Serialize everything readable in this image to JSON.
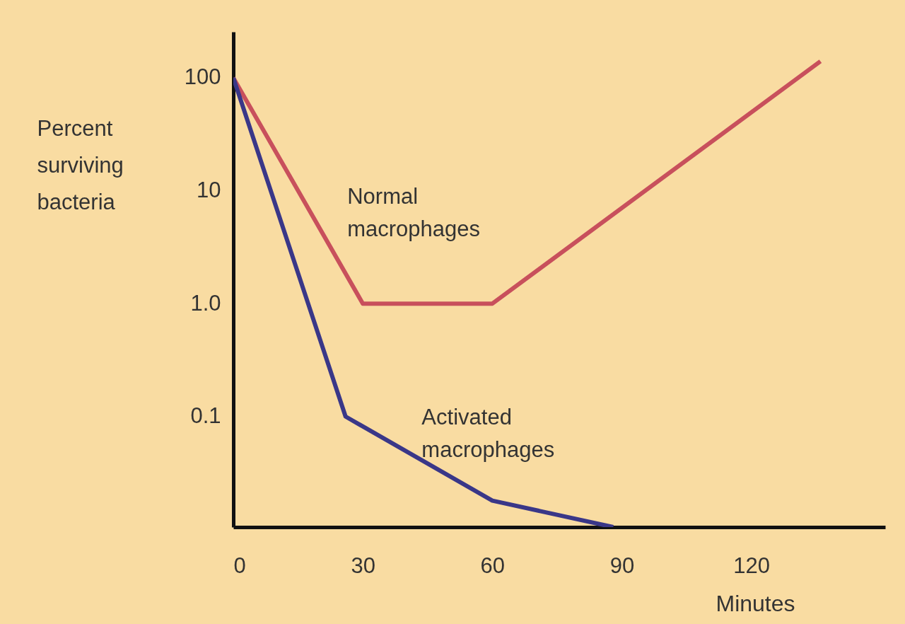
{
  "chart_data": {
    "type": "line",
    "xlabel": "Minutes",
    "ylabel": "Percent surviving bacteria",
    "log": "y",
    "grid": false,
    "legend": false,
    "marker": "none",
    "line_style": "solid",
    "xlim": [
      0,
      151
    ],
    "xticks": [
      0,
      30,
      60,
      90,
      120
    ],
    "ylim": [
      0.0105,
      255
    ],
    "yticks": [
      0.1,
      {
        "value": 1,
        "label": "1.0"
      },
      10,
      100
    ],
    "series": [
      {
        "name": "Normal macrophages",
        "color": "#c8505c",
        "x": [
          0,
          30,
          60,
          136
        ],
        "values": [
          100,
          1.0,
          1.0,
          140
        ]
      },
      {
        "name": "Activated macrophages",
        "color": "#3a3788",
        "x": [
          0,
          26,
          60,
          88
        ],
        "values": [
          100,
          0.1,
          0.018,
          0.0105
        ]
      }
    ]
  }
}
